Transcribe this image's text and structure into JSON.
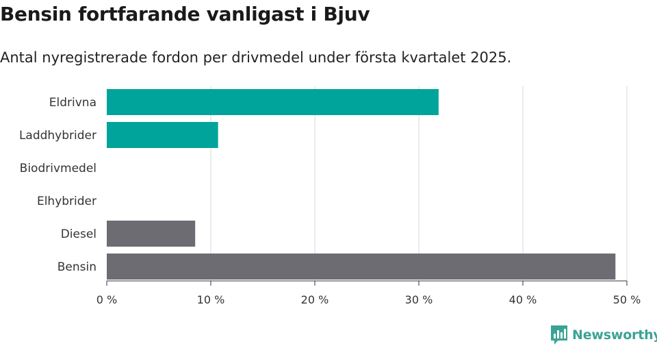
{
  "header": {
    "title": "Bensin fortfarande vanligast i Bjuv",
    "subtitle": "Antal nyregistrerade fordon per drivmedel under första kvartalet 2025."
  },
  "brand": {
    "name": "Newsworthy",
    "color": "#3aa394"
  },
  "colors": {
    "teal": "#00a49a",
    "gray": "#6d6c72",
    "grid": "#d9d9d9",
    "axis": "#333333"
  },
  "chart_data": {
    "type": "bar",
    "orientation": "horizontal",
    "categories": [
      "Eldrivna",
      "Laddhybrider",
      "Biodrivmedel",
      "Elhybrider",
      "Diesel",
      "Bensin"
    ],
    "values": [
      31.9,
      10.7,
      0,
      0,
      8.5,
      48.9
    ],
    "bar_colors": [
      "teal",
      "teal",
      "teal",
      "teal",
      "gray",
      "gray"
    ],
    "xlim": [
      0,
      50
    ],
    "xticks": [
      0,
      10,
      20,
      30,
      40,
      50
    ],
    "xtick_labels": [
      "0 %",
      "10 %",
      "20 %",
      "30 %",
      "40 %",
      "50 %"
    ],
    "xlabel": "",
    "ylabel": "",
    "grid": true
  }
}
